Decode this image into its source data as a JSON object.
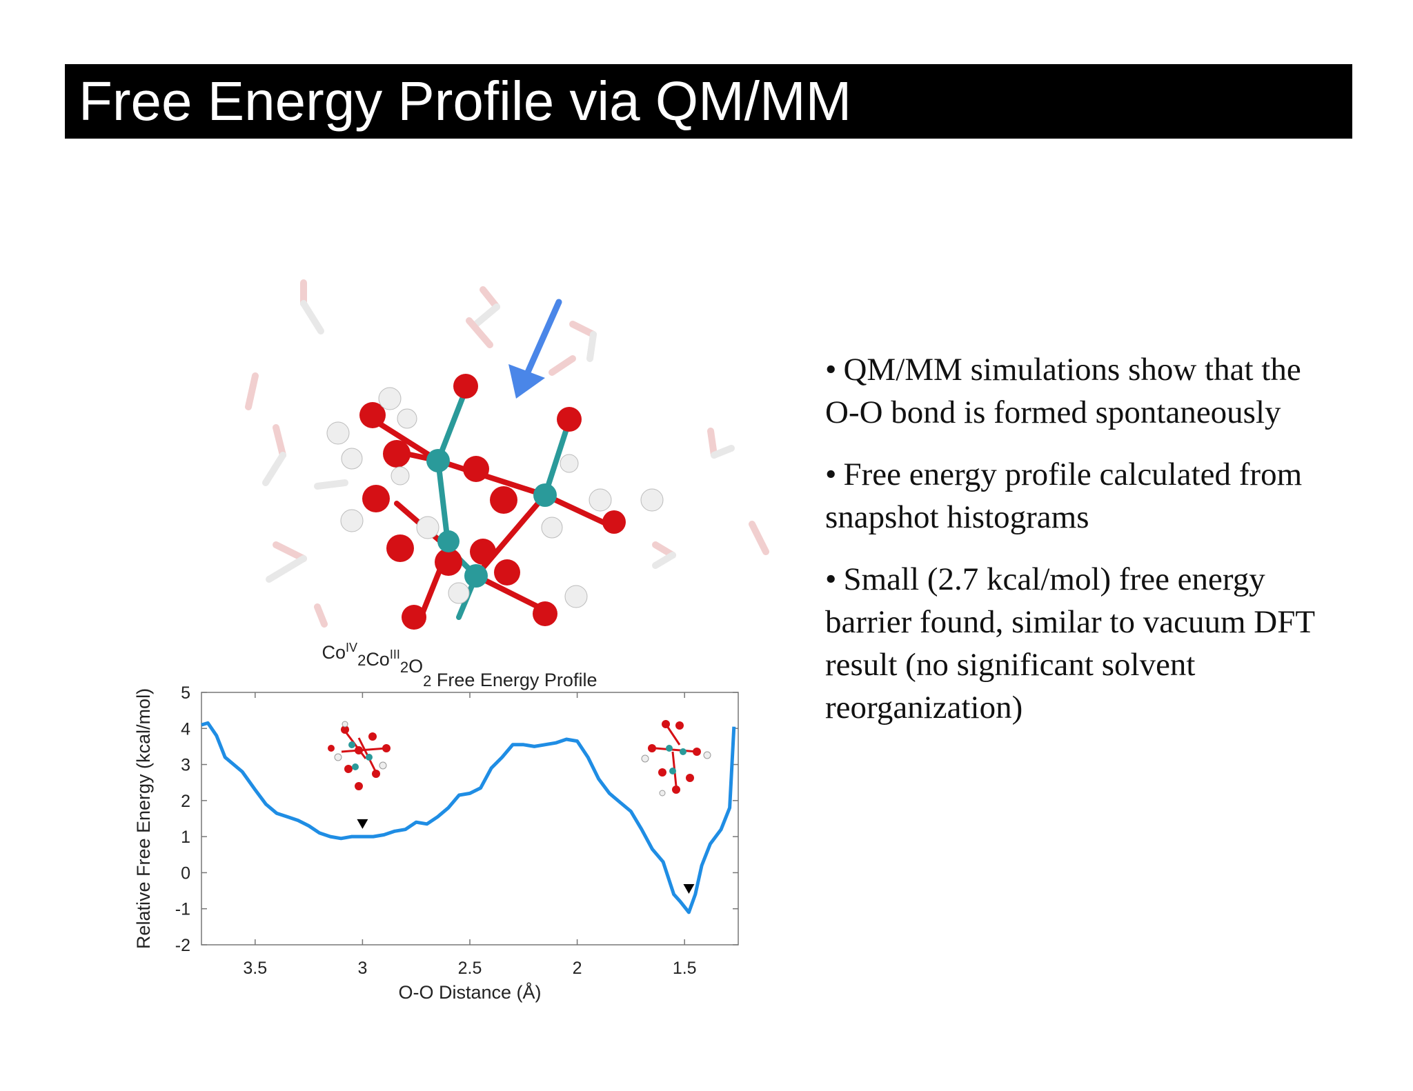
{
  "slide": {
    "title": "Free Energy Profile via QM/MM",
    "bullets": [
      "QM/MM simulations show that the O-O bond is formed spontaneously",
      "Free energy profile calculated from snapshot histograms",
      "Small (2.7 kcal/mol) free energy barrier found, similar to vacuum DFT result (no significant solvent reorganization)"
    ],
    "bullet_symbol": "•"
  },
  "colors": {
    "title_bg": "#000000",
    "title_fg": "#ffffff",
    "curve": "#1f8de4",
    "arrow": "#4a86e8",
    "oxygen": "#d51015",
    "cobalt": "#2a9a9a",
    "hydrogen": "#eeeeee"
  },
  "chart_data": {
    "type": "line",
    "title": {
      "parts": [
        {
          "text": "Co",
          "style": "normal"
        },
        {
          "text": "IV",
          "style": "sup"
        },
        {
          "text": "2",
          "style": "sub"
        },
        {
          "text": "Co",
          "style": "normal"
        },
        {
          "text": "III",
          "style": "sup"
        },
        {
          "text": "2",
          "style": "sub"
        },
        {
          "text": "O",
          "style": "normal"
        },
        {
          "text": "2",
          "style": "sub"
        },
        {
          "text": " Free Energy Profile",
          "style": "normal"
        }
      ]
    },
    "xlabel": "O-O Distance (Å)",
    "ylabel": "Relative Free Energy (kcal/mol)",
    "xlim": [
      3.75,
      1.25
    ],
    "ylim": [
      -2,
      5
    ],
    "x_reversed": true,
    "xticks": [
      3.5,
      3,
      2.5,
      2,
      1.5
    ],
    "yticks": [
      5,
      4,
      3,
      2,
      1,
      0,
      -1,
      -2
    ],
    "grid": false,
    "series": [
      {
        "x": [
          3.75,
          3.72,
          3.68,
          3.64,
          3.56,
          3.5,
          3.45,
          3.4,
          3.35,
          3.3,
          3.25,
          3.2,
          3.15,
          3.1,
          3.05,
          3.0,
          2.95,
          2.9,
          2.85,
          2.8,
          2.75,
          2.7,
          2.65,
          2.6,
          2.55,
          2.5,
          2.45,
          2.4,
          2.35,
          2.3,
          2.25,
          2.2,
          2.15,
          2.1,
          2.05,
          2.0,
          1.95,
          1.9,
          1.85,
          1.8,
          1.75,
          1.7,
          1.65,
          1.6,
          1.55,
          1.52,
          1.48,
          1.45,
          1.42,
          1.38,
          1.33,
          1.29,
          1.27
        ],
        "y": [
          4.1,
          4.15,
          3.8,
          3.2,
          2.8,
          2.3,
          1.9,
          1.65,
          1.55,
          1.45,
          1.3,
          1.1,
          1.0,
          0.95,
          1.0,
          1.0,
          1.0,
          1.05,
          1.15,
          1.2,
          1.4,
          1.35,
          1.55,
          1.8,
          2.15,
          2.2,
          2.35,
          2.9,
          3.2,
          3.55,
          3.55,
          3.5,
          3.55,
          3.6,
          3.7,
          3.65,
          3.2,
          2.6,
          2.2,
          1.95,
          1.7,
          1.2,
          0.65,
          0.3,
          -0.6,
          -0.8,
          -1.1,
          -0.6,
          0.2,
          0.8,
          1.2,
          1.8,
          4.05
        ]
      }
    ],
    "annotations": [
      {
        "type": "marker-triangle-down",
        "x": 3.0,
        "y": 1.35
      },
      {
        "type": "marker-triangle-down",
        "x": 1.48,
        "y": -0.45
      }
    ]
  }
}
